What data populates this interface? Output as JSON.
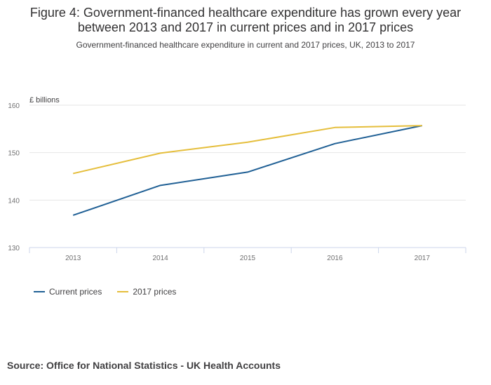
{
  "colors": {
    "current": "#206095",
    "prices2017": "#E5BE3B",
    "grid": "#E6E6E6",
    "axis": "#CCD6EB"
  },
  "chart_data": {
    "type": "line",
    "title": "Figure 4: Government-financed healthcare expenditure has grown every year between 2013 and 2017 in current prices and in 2017 prices",
    "subtitle": "Government-financed healthcare expenditure in current and 2017 prices, UK, 2013 to 2017",
    "ylabel": "£ billions",
    "categories": [
      "2013",
      "2014",
      "2015",
      "2016",
      "2017"
    ],
    "ylim": [
      130,
      160
    ],
    "yticks": [
      "130",
      "140",
      "150",
      "160"
    ],
    "grid": true,
    "legend_position": "bottom-left",
    "series": [
      {
        "name": "Current prices",
        "color": "#206095",
        "values": [
          136.8,
          143.1,
          145.9,
          151.9,
          155.7
        ]
      },
      {
        "name": "2017 prices",
        "color": "#E5BE3B",
        "values": [
          145.6,
          149.9,
          152.2,
          155.3,
          155.7
        ]
      }
    ],
    "source": "Source: Office for National Statistics - UK Health Accounts"
  }
}
